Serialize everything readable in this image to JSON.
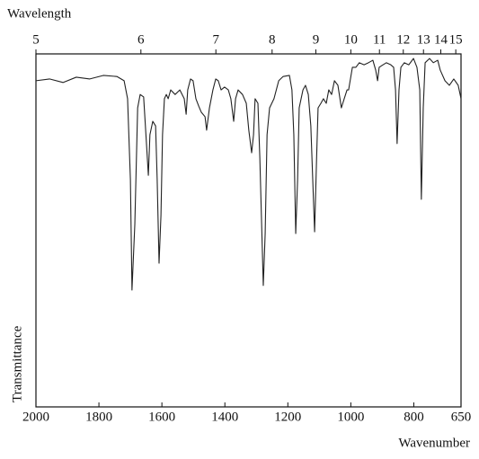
{
  "chart_data": {
    "type": "line",
    "x_label": "Wavenumber",
    "x2_label": "Wavelength",
    "y_label": "Transmittance",
    "xlim": [
      2000,
      650
    ],
    "xticks": [
      2000,
      1800,
      1600,
      1400,
      1200,
      1000,
      800,
      650
    ],
    "x2ticks": [
      5,
      6,
      7,
      8,
      9,
      10,
      11,
      12,
      13,
      14,
      15
    ],
    "ylim": [
      0,
      100
    ],
    "x": [
      2000,
      1957,
      1914,
      1872,
      1829,
      1786,
      1743,
      1720,
      1709,
      1700,
      1695,
      1686,
      1677,
      1669,
      1658,
      1649,
      1643,
      1638,
      1629,
      1620,
      1615,
      1609,
      1603,
      1598,
      1592,
      1586,
      1580,
      1572,
      1558,
      1543,
      1529,
      1523,
      1518,
      1509,
      1501,
      1492,
      1483,
      1475,
      1463,
      1458,
      1449,
      1438,
      1429,
      1421,
      1412,
      1401,
      1389,
      1381,
      1372,
      1366,
      1358,
      1344,
      1332,
      1324,
      1315,
      1309,
      1304,
      1295,
      1289,
      1284,
      1278,
      1272,
      1266,
      1258,
      1244,
      1229,
      1215,
      1195,
      1187,
      1181,
      1175,
      1169,
      1164,
      1152,
      1144,
      1135,
      1127,
      1121,
      1115,
      1109,
      1104,
      1095,
      1087,
      1078,
      1070,
      1061,
      1052,
      1041,
      1030,
      1021,
      1012,
      1007,
      995,
      984,
      973,
      958,
      944,
      930,
      921,
      915,
      910,
      898,
      887,
      873,
      864,
      858,
      853,
      847,
      841,
      830,
      816,
      801,
      790,
      781,
      776,
      770,
      764,
      750,
      738,
      724,
      716,
      701,
      687,
      673,
      659,
      650
    ],
    "series": [
      {
        "name": "Transmittance",
        "color": "#222222",
        "values": [
          92.4,
          92.9,
          91.9,
          93.4,
          92.9,
          93.9,
          93.6,
          92.4,
          87.3,
          64.4,
          33.1,
          51.7,
          84.7,
          88.5,
          87.8,
          74.6,
          65.6,
          77.1,
          80.9,
          79.6,
          64.4,
          40.7,
          54.2,
          77.1,
          87.3,
          88.5,
          87.3,
          89.8,
          88.5,
          89.8,
          87.3,
          82.9,
          89.8,
          92.9,
          92.4,
          87.3,
          85.2,
          83.5,
          82.2,
          78.4,
          84.7,
          89.8,
          92.9,
          92.4,
          89.8,
          90.6,
          89.8,
          87.3,
          80.9,
          87.3,
          89.8,
          88.5,
          86.0,
          78.4,
          72.0,
          77.1,
          87.3,
          86.0,
          70.7,
          54.2,
          34.4,
          49.1,
          77.1,
          84.7,
          87.3,
          92.4,
          93.6,
          93.9,
          89.8,
          77.1,
          49.1,
          64.4,
          84.7,
          89.8,
          91.1,
          88.5,
          79.6,
          64.4,
          49.6,
          69.5,
          84.7,
          86.0,
          87.3,
          86.0,
          89.8,
          88.5,
          92.4,
          91.1,
          84.7,
          87.3,
          89.8,
          89.8,
          96.2,
          96.2,
          97.5,
          96.9,
          97.5,
          98.2,
          95.4,
          92.4,
          96.2,
          96.9,
          97.5,
          96.9,
          96.2,
          89.8,
          74.6,
          89.8,
          96.2,
          97.5,
          96.9,
          98.7,
          96.2,
          89.8,
          58.8,
          84.7,
          97.5,
          98.7,
          97.5,
          98.2,
          95.4,
          92.4,
          91.1,
          92.9,
          91.1,
          87.3
        ]
      }
    ]
  }
}
